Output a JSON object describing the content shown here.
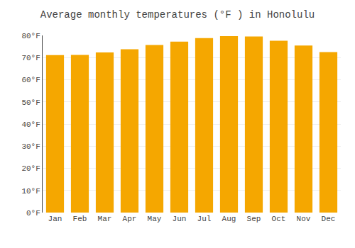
{
  "chart_data": {
    "type": "bar",
    "title": "Average monthly temperatures (°F ) in Honolulu",
    "categories": [
      "Jan",
      "Feb",
      "Mar",
      "Apr",
      "May",
      "Jun",
      "Jul",
      "Aug",
      "Sep",
      "Oct",
      "Nov",
      "Dec"
    ],
    "values": [
      71.1,
      71.2,
      72.3,
      73.8,
      75.7,
      77.2,
      78.8,
      79.7,
      79.5,
      77.6,
      75.4,
      72.5
    ],
    "color": "#F5A700",
    "ylim": [
      0,
      80
    ],
    "yticks": [
      {
        "value": 0,
        "label": "0°F"
      },
      {
        "value": 10,
        "label": "10°F"
      },
      {
        "value": 20,
        "label": "20°F"
      },
      {
        "value": 30,
        "label": "30°F"
      },
      {
        "value": 40,
        "label": "40°F"
      },
      {
        "value": 50,
        "label": "50°F"
      },
      {
        "value": 60,
        "label": "60°F"
      },
      {
        "value": 70,
        "label": "70°F"
      },
      {
        "value": 80,
        "label": "80°F"
      }
    ],
    "grid": true
  }
}
